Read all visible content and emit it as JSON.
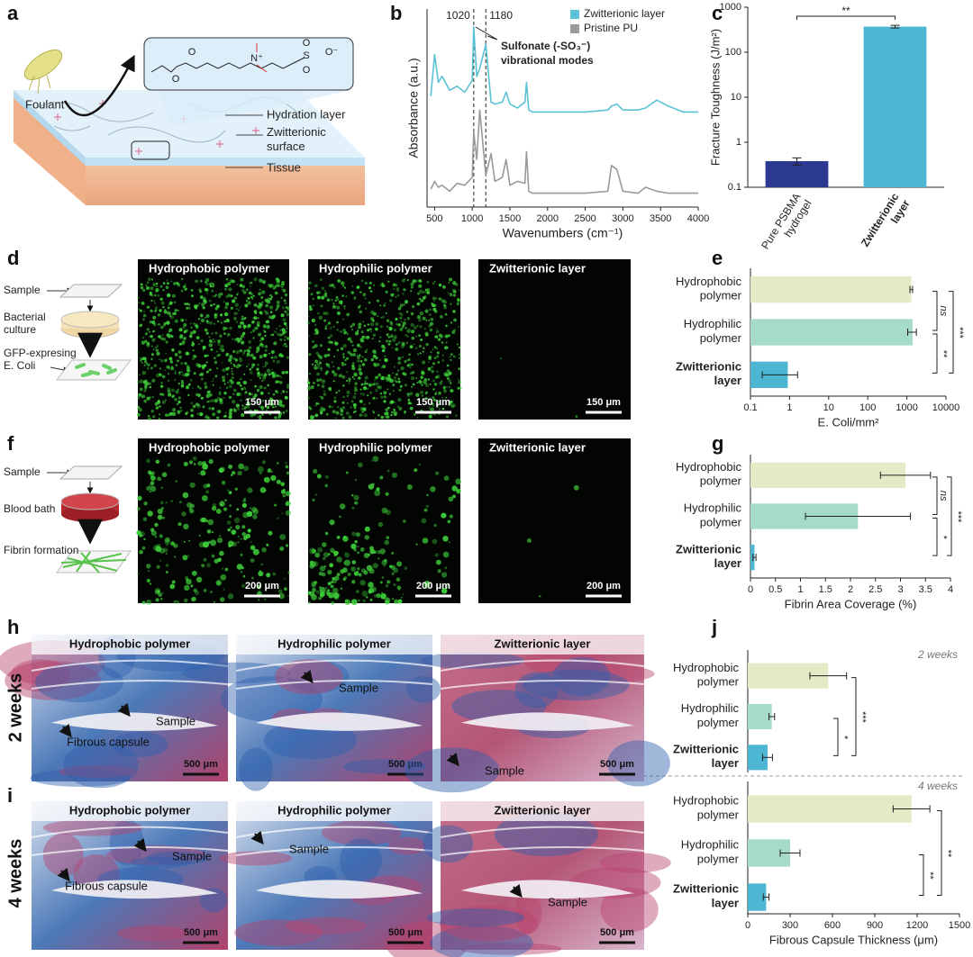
{
  "panel_labels": [
    "a",
    "b",
    "c",
    "d",
    "e",
    "f",
    "g",
    "h",
    "i",
    "j"
  ],
  "schematic_a": {
    "structure_atoms": [
      "O",
      "O",
      "N⁺",
      "S",
      "O",
      "O",
      "O⁻"
    ],
    "labels": [
      "Foulant",
      "Hydration layer",
      "Zwitterionic surface",
      "Tissue"
    ]
  },
  "schematic_d": {
    "labels": [
      "Sample",
      "Bacterial culture",
      "GFP-expresing E. Coli"
    ]
  },
  "schematic_f": {
    "labels": [
      "Sample",
      "Blood bath",
      "Fibrin formation"
    ]
  },
  "micrographs": [
    {
      "titles": [
        "Hydrophobic polymer",
        "Hydrophilic polymer",
        "Zwitterionic layer"
      ],
      "scale_bars": [
        "150 μm",
        "150 μm",
        "150 μm"
      ]
    },
    {
      "titles": [
        "Hydrophobic polymer",
        "Hydrophilic polymer",
        "Zwitterionic layer"
      ],
      "scale_bars": [
        "200 μm",
        "200 μm",
        "200 μm"
      ]
    },
    {
      "row_label": "2 weeks",
      "titles": [
        "Hydrophobic polymer",
        "Hydrophilic polymer",
        "Zwitterionic layer"
      ],
      "scale_bars": [
        "500 μm",
        "500 μm",
        "500 μm"
      ],
      "annotations": [
        [
          "Sample",
          "Fibrous capsule"
        ],
        [
          "Sample"
        ],
        [
          "Sample"
        ]
      ]
    },
    {
      "row_label": "4 weeks",
      "titles": [
        "Hydrophobic polymer",
        "Hydrophilic polymer",
        "Zwitterionic layer"
      ],
      "scale_bars": [
        "500 μm",
        "500 μm",
        "500 μm"
      ],
      "annotations": [
        [
          "Sample",
          "Fibrous capsule"
        ],
        [
          "Sample"
        ],
        [
          "Sample"
        ]
      ]
    }
  ],
  "chart_data": [
    {
      "type": "line",
      "x_label": "Wavenumbers (cm⁻¹)",
      "y_label": "Absorbance (a.u.)",
      "x": [
        450,
        500,
        550,
        600,
        700,
        800,
        900,
        1000,
        1020,
        1060,
        1100,
        1180,
        1250,
        1300,
        1400,
        1450,
        1500,
        1600,
        1700,
        1720,
        1750,
        1800,
        2000,
        2500,
        2800,
        2850,
        2920,
        3000,
        3200,
        3300,
        3450,
        3600,
        3800,
        4000
      ],
      "series": [
        {
          "name": "Zwitterionic layer",
          "color": "#5bc2d6",
          "values": [
            5.6,
            7.7,
            6.3,
            6.6,
            5.9,
            6.1,
            5.8,
            6.4,
            9.1,
            6.6,
            7.0,
            8.2,
            5.3,
            5.2,
            5.3,
            5.8,
            5.2,
            5.0,
            5.3,
            6.3,
            4.9,
            4.8,
            4.8,
            4.8,
            4.9,
            5.1,
            5.2,
            4.9,
            4.9,
            5.0,
            5.4,
            5.1,
            4.8,
            4.8
          ]
        },
        {
          "name": "Pristine PU",
          "color": "#9a9a9a",
          "values": [
            0.9,
            1.3,
            1.0,
            1.1,
            0.8,
            1.2,
            1.1,
            1.5,
            3.8,
            2.4,
            4.9,
            1.6,
            2.7,
            1.3,
            1.5,
            2.4,
            1.1,
            1.3,
            1.2,
            2.8,
            0.8,
            0.7,
            0.7,
            0.7,
            0.8,
            2.1,
            1.9,
            0.8,
            0.7,
            1.0,
            0.8,
            0.7,
            0.7,
            0.7
          ]
        }
      ],
      "xlim": [
        400,
        4000
      ],
      "xticks": [
        500,
        1000,
        1500,
        2000,
        2500,
        3000,
        3500,
        4000
      ],
      "ylim": [
        0,
        10
      ],
      "vlines": [
        1020,
        1180
      ],
      "annotation": [
        "Sulfonate (-SO₃⁻)",
        "vibrational modes"
      ],
      "legend": "upper right"
    },
    {
      "type": "bar",
      "y_label": "Fracture Toughness (J/m²)",
      "categories": [
        "Pure PSBMA hydrogel",
        "Zwitterionic layer"
      ],
      "values": [
        0.38,
        370
      ],
      "errors": [
        0.07,
        25
      ],
      "colors": [
        "#2b3990",
        "#4db6d3"
      ],
      "ylim": [
        0.1,
        1000
      ],
      "yticks": [
        0.1,
        1,
        10,
        100,
        1000
      ],
      "log_scale": true,
      "significance": [
        "**"
      ]
    },
    {
      "type": "hbar",
      "x_label": "E. Coli/mm²",
      "categories": [
        "Hydrophobic polymer",
        "Hydrophilic polymer",
        "Zwitterionic layer"
      ],
      "values": [
        1300,
        1400,
        0.9
      ],
      "errors": [
        100,
        350,
        0.7
      ],
      "colors": [
        "#e3ebc6",
        "#a6dcc7",
        "#4db6d3"
      ],
      "xlim": [
        0.1,
        10000
      ],
      "xticks": [
        0.1,
        1,
        10,
        100,
        1000,
        10000
      ],
      "log_scale": true,
      "significance": [
        "ns",
        "**",
        "***"
      ]
    },
    {
      "type": "hbar",
      "x_label": "Fibrin Area Coverage (%)",
      "categories": [
        "Hydrophobic polymer",
        "Hydrophilic polymer",
        "Zwitterionic layer"
      ],
      "values": [
        3.1,
        2.15,
        0.08
      ],
      "errors": [
        0.5,
        1.05,
        0.03
      ],
      "colors": [
        "#e3ebc6",
        "#a6dcc7",
        "#4db6d3"
      ],
      "xlim": [
        0,
        4
      ],
      "xticks": [
        0,
        0.5,
        1,
        1.5,
        2,
        2.5,
        3,
        3.5,
        4
      ],
      "significance": [
        "ns",
        "*",
        "***"
      ]
    },
    {
      "type": "hbar",
      "title": "2 weeks",
      "categories": [
        "Hydrophobic polymer",
        "Hydrophilic polymer",
        "Zwitterionic layer"
      ],
      "values": [
        570,
        170,
        140
      ],
      "errors": [
        130,
        20,
        35
      ],
      "colors": [
        "#e3ebc6",
        "#a6dcc7",
        "#4db6d3"
      ],
      "xlim": [
        0,
        1500
      ],
      "significance": [
        "*",
        "***"
      ]
    },
    {
      "type": "hbar",
      "title": "4 weeks",
      "x_label": "Fibrous Capsule Thickness (μm)",
      "categories": [
        "Hydrophobic polymer",
        "Hydrophilic polymer",
        "Zwitterionic layer"
      ],
      "values": [
        1160,
        300,
        130
      ],
      "errors": [
        130,
        70,
        20
      ],
      "colors": [
        "#e3ebc6",
        "#a6dcc7",
        "#4db6d3"
      ],
      "xlim": [
        0,
        1500
      ],
      "xticks": [
        0,
        300,
        600,
        900,
        1200,
        1500
      ],
      "significance": [
        "**",
        "**"
      ]
    }
  ]
}
